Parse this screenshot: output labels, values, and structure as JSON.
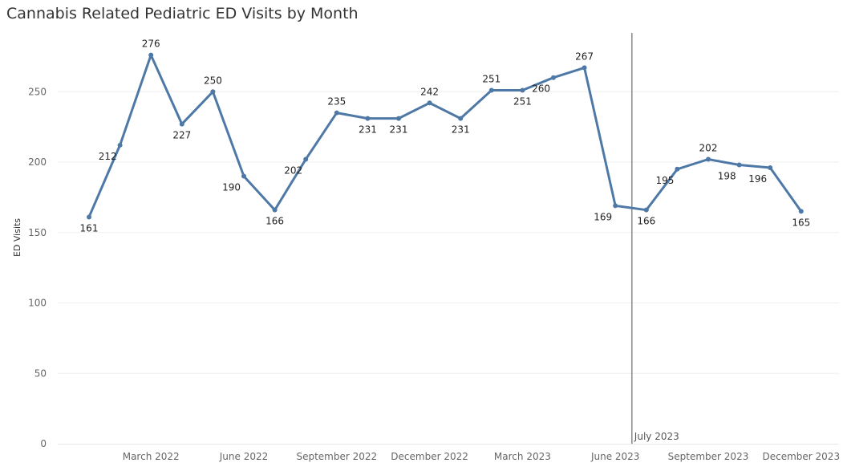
{
  "chart_data": {
    "type": "line",
    "title": "Cannabis Related Pediatric ED Visits by Month",
    "xlabel": "",
    "ylabel": "ED Visits",
    "ylim": [
      0,
      280
    ],
    "yticks": [
      0,
      50,
      100,
      150,
      200,
      250
    ],
    "grid": true,
    "legend": "none",
    "line_color": "#4e79a7",
    "x": [
      "2022-01",
      "2022-02",
      "2022-03",
      "2022-04",
      "2022-05",
      "2022-06",
      "2022-07",
      "2022-08",
      "2022-09",
      "2022-10",
      "2022-11",
      "2022-12",
      "2023-01",
      "2023-02",
      "2023-03",
      "2023-04",
      "2023-05",
      "2023-06",
      "2023-07",
      "2023-08",
      "2023-09",
      "2023-10",
      "2023-11",
      "2023-12"
    ],
    "values": [
      161,
      212,
      276,
      227,
      250,
      190,
      166,
      202,
      235,
      231,
      231,
      242,
      231,
      251,
      251,
      260,
      267,
      169,
      166,
      195,
      202,
      198,
      196,
      165
    ],
    "xtick_labels": [
      {
        "month": "2022-03",
        "label": "March 2022"
      },
      {
        "month": "2022-06",
        "label": "June 2022"
      },
      {
        "month": "2022-09",
        "label": "September 2022"
      },
      {
        "month": "2022-12",
        "label": "December 2022"
      },
      {
        "month": "2023-03",
        "label": "March 2023"
      },
      {
        "month": "2023-06",
        "label": "June 2023"
      },
      {
        "month": "2023-09",
        "label": "September 2023"
      },
      {
        "month": "2023-12",
        "label": "December 2023"
      }
    ],
    "reference_line": {
      "month": "2023-07",
      "label": "July 2023",
      "color": "#888888"
    }
  }
}
